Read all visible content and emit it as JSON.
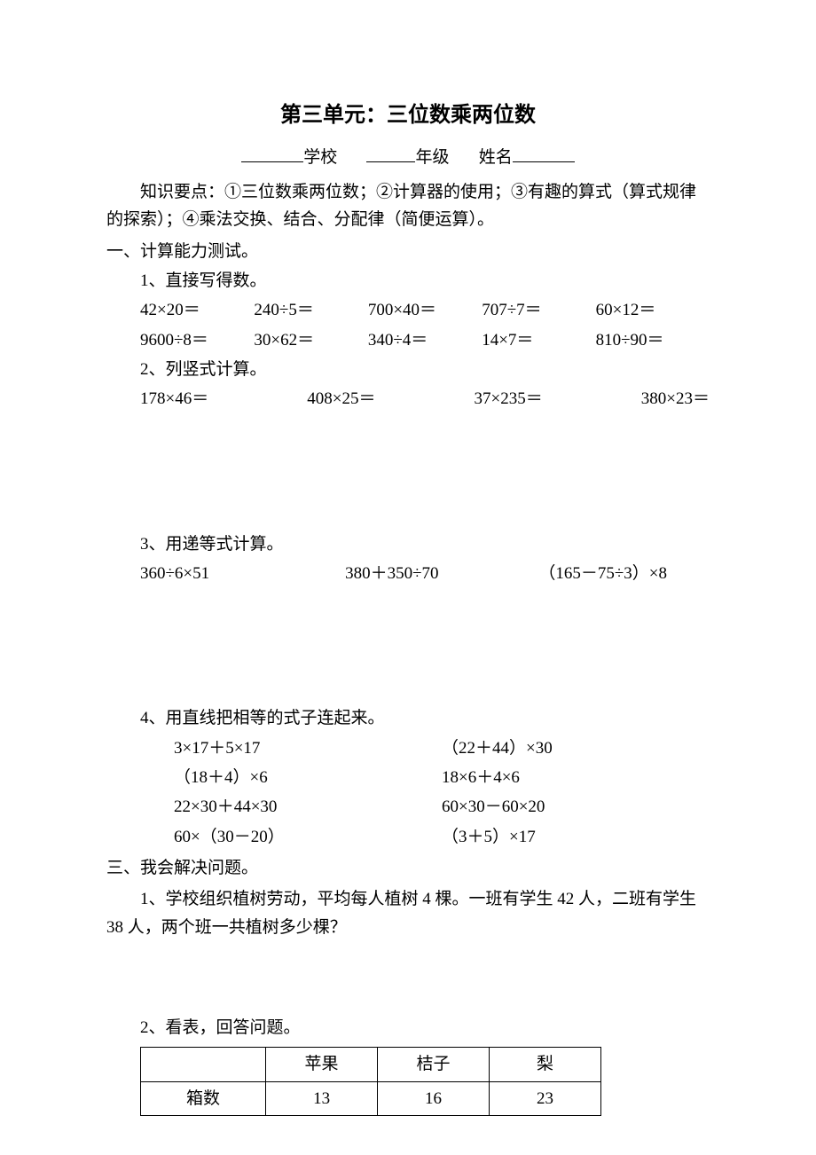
{
  "title": "第三单元：三位数乘两位数",
  "header": {
    "school": "学校",
    "grade": "年级",
    "name": "姓名"
  },
  "intro": "知识要点：①三位数乘两位数；②计算器的使用；③有趣的算式（算式规律的探索）；④乘法交换、结合、分配律（简便运算）。",
  "sec1": {
    "title": "一、计算能力测试。",
    "q1": {
      "label": "1、直接写得数。",
      "row1": [
        "42×20＝",
        "240÷5＝",
        "700×40＝",
        "707÷7＝",
        "60×12＝"
      ],
      "row2": [
        "9600÷8＝",
        "30×62＝",
        "340÷4＝",
        "14×7＝",
        "810÷90＝"
      ]
    },
    "q2": {
      "label": "2、列竖式计算。",
      "row": [
        "178×46＝",
        "408×25＝",
        "37×235＝",
        "380×23＝"
      ]
    },
    "q3": {
      "label": "3、用递等式计算。",
      "row": [
        "360÷6×51",
        "380＋350÷70",
        "（165－75÷3）×8"
      ]
    },
    "q4": {
      "label": "4、用直线把相等的式子连起来。",
      "pairs": [
        [
          "3×17＋5×17",
          "（22＋44）×30"
        ],
        [
          "（18＋4）×6",
          "18×6＋4×6"
        ],
        [
          "22×30＋44×30",
          "60×30－60×20"
        ],
        [
          "60×（30－20）",
          "（3＋5）×17"
        ]
      ]
    }
  },
  "sec3": {
    "title": "三、我会解决问题。",
    "q1": "1、学校组织植树劳动，平均每人植树 4 棵。一班有学生 42 人，二班有学生38 人，两个班一共植树多少棵？",
    "q2": "2、看表，回答问题。",
    "table": {
      "headers": [
        "",
        "苹果",
        "桔子",
        "梨"
      ],
      "row": [
        "箱数",
        "13",
        "16",
        "23"
      ]
    }
  }
}
